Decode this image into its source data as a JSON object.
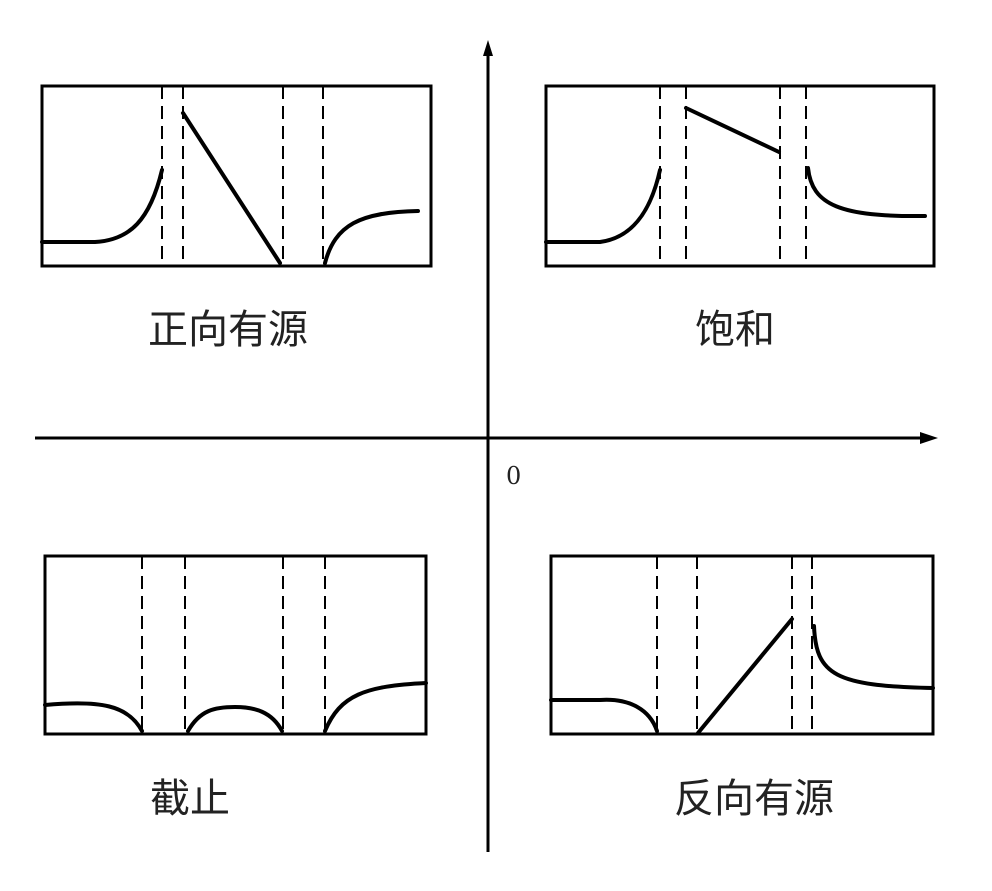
{
  "quadrants": {
    "top_left": {
      "label": "正向有源"
    },
    "top_right": {
      "label": "饱和"
    },
    "bottom_left": {
      "label": "截止"
    },
    "bottom_right": {
      "label": "反向有源"
    }
  },
  "axes": {
    "origin_label": "0"
  },
  "colors": {
    "stroke": "#000000",
    "text": "#222222",
    "background": "#ffffff"
  }
}
